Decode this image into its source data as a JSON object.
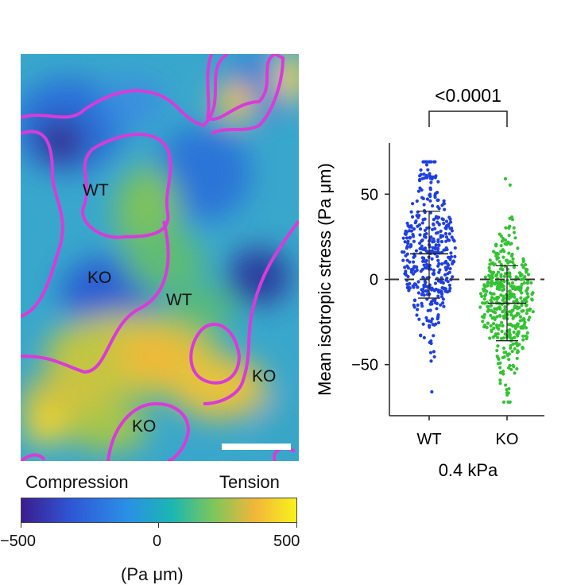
{
  "map": {
    "labels": [
      "WT",
      "KO",
      "WT",
      "KO",
      "KO"
    ],
    "colorbar": {
      "left_text": "Compression",
      "right_text": "Tension",
      "ticks": [
        "−500",
        "0",
        "500"
      ],
      "unit": "(Pa μm)"
    },
    "colors": {
      "boundary": "#d93bd9",
      "scale_bar": "#ffffff"
    }
  },
  "chart_data": {
    "type": "scatter",
    "subtype": "beeswarm",
    "categories": [
      "WT",
      "KO"
    ],
    "xlabel": "0.4 kPa",
    "ylabel": "Mean isotropic stress (Pa μm)",
    "ylim": [
      -80,
      80
    ],
    "yticks": [
      50,
      0,
      -50
    ],
    "ytick_labels": [
      "50",
      "0",
      "−50"
    ],
    "reference_line": {
      "y": 0,
      "style": "dashed"
    },
    "significance": {
      "label": "<0.0001",
      "between": [
        "WT",
        "KO"
      ]
    },
    "series": [
      {
        "category": "WT",
        "color": "#1f3fe0",
        "mean": 15,
        "sd_low": -11,
        "sd_high": 40,
        "min": -66,
        "max": 69,
        "n_points_approx": 420
      },
      {
        "category": "KO",
        "color": "#33c233",
        "mean": -14,
        "sd_low": -36,
        "sd_high": 8,
        "min": -72,
        "max": 59,
        "n_points_approx": 420
      }
    ]
  }
}
